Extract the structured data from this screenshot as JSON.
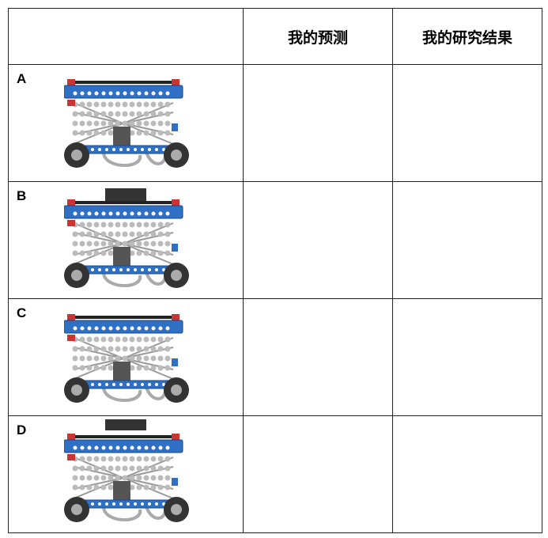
{
  "table": {
    "columns": [
      "我的预测",
      "我的研究结果"
    ],
    "rows": [
      "A",
      "B",
      "C",
      "D"
    ]
  }
}
